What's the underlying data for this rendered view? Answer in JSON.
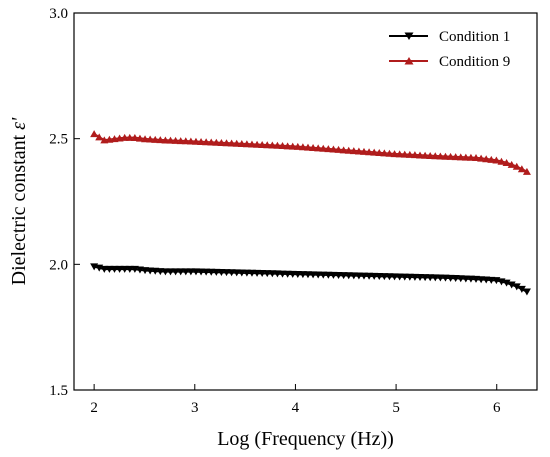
{
  "chart_data": {
    "type": "line",
    "title": "",
    "xlabel": "Log (Frequency (Hz))",
    "ylabel": "Dielectric constant ",
    "ylabel_symbol": "ε'",
    "xlim": [
      1.8,
      6.4
    ],
    "ylim": [
      1.5,
      3.0
    ],
    "xticks": [
      2,
      3,
      4,
      5,
      6
    ],
    "xtick_labels": [
      "2",
      "3",
      "4",
      "5",
      "6"
    ],
    "yticks": [
      1.5,
      2.0,
      2.5,
      3.0
    ],
    "ytick_labels": [
      "1.5",
      "2.0",
      "2.5",
      "3.0"
    ],
    "grid": false,
    "legend_position": "top-right",
    "x": [
      2.0,
      2.1,
      2.2,
      2.3,
      2.4,
      2.5,
      2.7,
      3.0,
      3.5,
      4.0,
      4.5,
      5.0,
      5.5,
      5.8,
      6.0,
      6.1,
      6.2,
      6.3
    ],
    "series": [
      {
        "name": "Condition 1",
        "color": "#000000",
        "marker": "triangle-down",
        "values": [
          1.99,
          1.98,
          1.98,
          1.98,
          1.98,
          1.975,
          1.97,
          1.97,
          1.965,
          1.96,
          1.955,
          1.95,
          1.945,
          1.94,
          1.935,
          1.925,
          1.91,
          1.89
        ]
      },
      {
        "name": "Condition 9",
        "color": "#b01c1c",
        "marker": "triangle-up",
        "values": [
          2.52,
          2.495,
          2.5,
          2.505,
          2.505,
          2.5,
          2.495,
          2.49,
          2.48,
          2.47,
          2.455,
          2.44,
          2.43,
          2.425,
          2.415,
          2.405,
          2.39,
          2.37
        ]
      }
    ]
  }
}
